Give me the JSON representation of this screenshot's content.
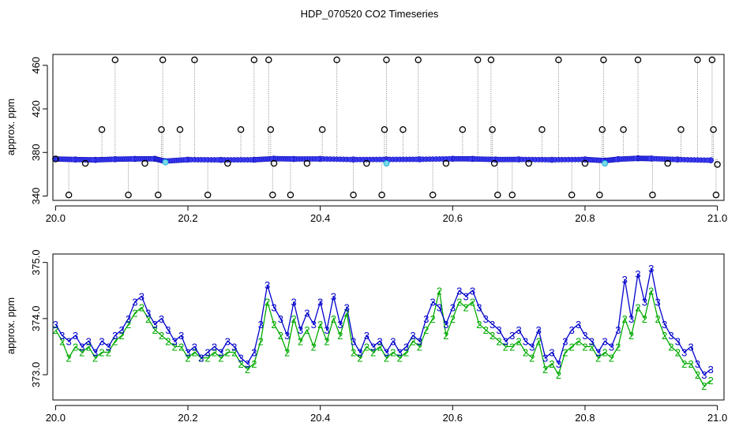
{
  "title": "HDP_070520  CO2 Timeseries",
  "chart_data": [
    {
      "type": "scatter",
      "ylabel": "approx. ppm",
      "xlabel": "",
      "xlim": [
        19.996,
        21.01
      ],
      "ylim": [
        336,
        470
      ],
      "xticks": [
        20.0,
        20.2,
        20.4,
        20.6,
        20.8,
        21.0
      ],
      "xtick_labels": [
        "20.0",
        "20.2",
        "20.4",
        "20.6",
        "20.8",
        "21.0"
      ],
      "yticks": [
        340,
        380,
        420,
        460
      ],
      "ytick_labels": [
        "340",
        "380",
        "420",
        "460"
      ],
      "grid": false,
      "baseline_points": [
        [
          20.0,
          374
        ],
        [
          20.03,
          373.5
        ],
        [
          20.06,
          373.2
        ],
        [
          20.09,
          373.8
        ],
        [
          20.12,
          374.1
        ],
        [
          20.15,
          374.2
        ],
        [
          20.165,
          372
        ],
        [
          20.2,
          373.4
        ],
        [
          20.25,
          373.2
        ],
        [
          20.3,
          373.3
        ],
        [
          20.33,
          374.3
        ],
        [
          20.36,
          374
        ],
        [
          20.4,
          374.1
        ],
        [
          20.45,
          373.5
        ],
        [
          20.5,
          373.6
        ],
        [
          20.55,
          373.7
        ],
        [
          20.6,
          374.2
        ],
        [
          20.63,
          374.1
        ],
        [
          20.665,
          373.5
        ],
        [
          20.7,
          373.6
        ],
        [
          20.75,
          373.3
        ],
        [
          20.8,
          373.6
        ],
        [
          20.83,
          372.5
        ],
        [
          20.85,
          373.8
        ],
        [
          20.88,
          374.6
        ],
        [
          20.9,
          374.4
        ],
        [
          20.94,
          373.5
        ],
        [
          20.99,
          372.8
        ]
      ],
      "cyan_points": [
        [
          20.166,
          371
        ],
        [
          20.5,
          370
        ],
        [
          20.83,
          370
        ]
      ],
      "spike_points": [
        [
          20.0,
          374
        ],
        [
          20.02,
          341
        ],
        [
          20.045,
          370
        ],
        [
          20.07,
          401
        ],
        [
          20.09,
          465
        ],
        [
          20.11,
          341
        ],
        [
          20.135,
          370
        ],
        [
          20.155,
          341
        ],
        [
          20.16,
          401
        ],
        [
          20.162,
          465
        ],
        [
          20.188,
          401
        ],
        [
          20.21,
          465
        ],
        [
          20.23,
          341
        ],
        [
          20.26,
          370
        ],
        [
          20.28,
          401
        ],
        [
          20.3,
          465
        ],
        [
          20.322,
          465
        ],
        [
          20.325,
          401
        ],
        [
          20.328,
          341
        ],
        [
          20.33,
          370
        ],
        [
          20.355,
          341
        ],
        [
          20.38,
          370
        ],
        [
          20.403,
          401
        ],
        [
          20.425,
          465
        ],
        [
          20.45,
          341
        ],
        [
          20.47,
          370
        ],
        [
          20.493,
          341
        ],
        [
          20.497,
          401
        ],
        [
          20.5,
          465
        ],
        [
          20.525,
          401
        ],
        [
          20.548,
          465
        ],
        [
          20.57,
          341
        ],
        [
          20.59,
          370
        ],
        [
          20.615,
          401
        ],
        [
          20.638,
          465
        ],
        [
          20.658,
          465
        ],
        [
          20.66,
          401
        ],
        [
          20.663,
          370
        ],
        [
          20.668,
          341
        ],
        [
          20.69,
          341
        ],
        [
          20.715,
          370
        ],
        [
          20.735,
          401
        ],
        [
          20.76,
          465
        ],
        [
          20.78,
          341
        ],
        [
          20.8,
          370
        ],
        [
          20.822,
          341
        ],
        [
          20.826,
          401
        ],
        [
          20.828,
          465
        ],
        [
          20.858,
          401
        ],
        [
          20.88,
          465
        ],
        [
          20.902,
          341
        ],
        [
          20.925,
          370
        ],
        [
          20.945,
          401
        ],
        [
          20.97,
          465
        ],
        [
          20.992,
          465
        ],
        [
          20.994,
          401
        ],
        [
          20.998,
          341
        ],
        [
          21.0,
          369
        ]
      ]
    },
    {
      "type": "line",
      "ylabel": "approx. ppm",
      "xlabel": "",
      "xlim": [
        19.996,
        21.01
      ],
      "ylim": [
        372.55,
        375.15
      ],
      "xticks": [
        20.0,
        20.2,
        20.4,
        20.6,
        20.8,
        21.0
      ],
      "xtick_labels": [
        "20.0",
        "20.2",
        "20.4",
        "20.6",
        "20.8",
        "21.0"
      ],
      "yticks": [
        373.0,
        374.0,
        375.0
      ],
      "ytick_labels": [
        "373.0",
        "374.0",
        "375.0"
      ],
      "grid": false,
      "series": [
        {
          "marker": "3",
          "color": "#0000cc",
          "x": [
            20.0,
            20.01,
            20.02,
            20.03,
            20.04,
            20.05,
            20.06,
            20.07,
            20.08,
            20.09,
            20.1,
            20.11,
            20.12,
            20.13,
            20.14,
            20.15,
            20.16,
            20.17,
            20.18,
            20.19,
            20.2,
            20.21,
            20.22,
            20.23,
            20.24,
            20.25,
            20.26,
            20.27,
            20.28,
            20.29,
            20.3,
            20.31,
            20.32,
            20.33,
            20.34,
            20.35,
            20.36,
            20.37,
            20.38,
            20.39,
            20.4,
            20.41,
            20.42,
            20.43,
            20.44,
            20.45,
            20.46,
            20.47,
            20.48,
            20.49,
            20.5,
            20.51,
            20.52,
            20.53,
            20.54,
            20.55,
            20.56,
            20.57,
            20.58,
            20.59,
            20.6,
            20.61,
            20.62,
            20.63,
            20.64,
            20.65,
            20.66,
            20.67,
            20.68,
            20.69,
            20.7,
            20.71,
            20.72,
            20.73,
            20.74,
            20.75,
            20.76,
            20.77,
            20.78,
            20.79,
            20.8,
            20.81,
            20.82,
            20.83,
            20.84,
            20.85,
            20.86,
            20.87,
            20.88,
            20.89,
            20.9,
            20.91,
            20.92,
            20.93,
            20.94,
            20.95,
            20.96,
            20.97,
            20.98,
            20.99
          ],
          "y": [
            373.9,
            373.7,
            373.6,
            373.7,
            373.5,
            373.6,
            373.4,
            373.6,
            373.5,
            373.7,
            373.8,
            374.0,
            374.3,
            374.4,
            374.1,
            373.9,
            374.0,
            373.8,
            373.6,
            373.7,
            373.4,
            373.5,
            373.3,
            373.4,
            373.5,
            373.4,
            373.6,
            373.5,
            373.3,
            373.2,
            373.4,
            373.9,
            374.6,
            374.2,
            374.0,
            373.7,
            374.3,
            373.8,
            374.1,
            373.9,
            374.3,
            373.8,
            374.4,
            373.9,
            374.2,
            373.6,
            373.4,
            373.7,
            373.5,
            373.6,
            373.4,
            373.6,
            373.4,
            373.5,
            373.7,
            373.6,
            374.0,
            374.3,
            374.2,
            373.9,
            374.2,
            374.5,
            374.4,
            374.5,
            374.2,
            374.0,
            373.9,
            373.8,
            373.6,
            373.7,
            373.8,
            373.6,
            373.5,
            373.8,
            373.3,
            373.4,
            373.2,
            373.6,
            373.8,
            373.9,
            373.7,
            373.6,
            373.4,
            373.6,
            373.5,
            373.8,
            374.7,
            374.0,
            374.8,
            374.3,
            374.9,
            374.3,
            373.9,
            373.7,
            373.6,
            373.4,
            373.5,
            373.2,
            373.0,
            373.1
          ]
        },
        {
          "marker": "2",
          "color": "#00aa00",
          "x": [
            20.0,
            20.01,
            20.02,
            20.03,
            20.04,
            20.05,
            20.06,
            20.07,
            20.08,
            20.09,
            20.1,
            20.11,
            20.12,
            20.13,
            20.14,
            20.15,
            20.16,
            20.17,
            20.18,
            20.19,
            20.2,
            20.21,
            20.22,
            20.23,
            20.24,
            20.25,
            20.26,
            20.27,
            20.28,
            20.29,
            20.3,
            20.31,
            20.32,
            20.33,
            20.34,
            20.35,
            20.36,
            20.37,
            20.38,
            20.39,
            20.4,
            20.41,
            20.42,
            20.43,
            20.44,
            20.45,
            20.46,
            20.47,
            20.48,
            20.49,
            20.5,
            20.51,
            20.52,
            20.53,
            20.54,
            20.55,
            20.56,
            20.57,
            20.58,
            20.59,
            20.6,
            20.61,
            20.62,
            20.63,
            20.64,
            20.65,
            20.66,
            20.67,
            20.68,
            20.69,
            20.7,
            20.71,
            20.72,
            20.73,
            20.74,
            20.75,
            20.76,
            20.77,
            20.78,
            20.79,
            20.8,
            20.81,
            20.82,
            20.83,
            20.84,
            20.85,
            20.86,
            20.87,
            20.88,
            20.89,
            20.9,
            20.91,
            20.92,
            20.93,
            20.94,
            20.95,
            20.96,
            20.97,
            20.98,
            20.99
          ],
          "y": [
            373.8,
            373.6,
            373.3,
            373.5,
            373.4,
            373.5,
            373.3,
            373.4,
            373.4,
            373.6,
            373.7,
            373.9,
            374.1,
            374.2,
            374.0,
            373.8,
            373.7,
            373.6,
            373.5,
            373.5,
            373.3,
            373.4,
            373.3,
            373.3,
            373.4,
            373.3,
            373.4,
            373.4,
            373.2,
            373.1,
            373.2,
            373.6,
            374.3,
            373.9,
            373.7,
            373.4,
            374.0,
            373.6,
            373.8,
            373.5,
            373.9,
            373.6,
            374.0,
            373.7,
            374.1,
            373.4,
            373.3,
            373.5,
            373.4,
            373.5,
            373.3,
            373.4,
            373.3,
            373.4,
            373.6,
            373.5,
            373.8,
            374.0,
            374.5,
            373.7,
            374.0,
            374.3,
            374.2,
            374.3,
            373.9,
            373.8,
            373.7,
            373.6,
            373.5,
            373.5,
            373.6,
            373.4,
            373.3,
            373.6,
            373.1,
            373.2,
            373.0,
            373.4,
            373.5,
            373.6,
            373.5,
            373.5,
            373.3,
            373.4,
            373.3,
            373.5,
            374.0,
            373.7,
            374.2,
            374.0,
            374.5,
            374.0,
            373.7,
            373.5,
            373.4,
            373.2,
            373.2,
            373.0,
            372.8,
            372.9
          ]
        }
      ]
    }
  ]
}
